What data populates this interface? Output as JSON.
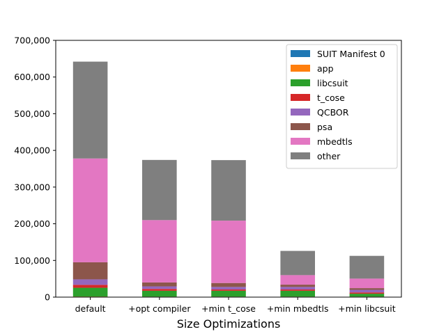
{
  "chart_data": {
    "type": "bar",
    "stacked": true,
    "xlabel": "Size Optimizations",
    "ylabel": "",
    "title": "",
    "categories": [
      "default",
      "+opt compiler",
      "+min t_cose",
      "+min mbedtls",
      "+min libcsuit"
    ],
    "ylim": [
      0,
      700000
    ],
    "yticks": [
      0,
      100000,
      200000,
      300000,
      400000,
      500000,
      600000,
      700000
    ],
    "ytick_labels": [
      "0",
      "100,000",
      "200,000",
      "300,000",
      "400,000",
      "500,000",
      "600,000",
      "700,000"
    ],
    "grid": false,
    "legend_position": "top-right",
    "series": [
      {
        "name": "SUIT Manifest 0",
        "color": "#1f77b4",
        "values": [
          500,
          500,
          500,
          500,
          500
        ]
      },
      {
        "name": "app",
        "color": "#ff7f0e",
        "values": [
          1000,
          800,
          800,
          800,
          800
        ]
      },
      {
        "name": "libcsuit",
        "color": "#2ca02c",
        "values": [
          24000,
          16000,
          16000,
          16000,
          8000
        ]
      },
      {
        "name": "t_cose",
        "color": "#d62728",
        "values": [
          8000,
          5000,
          3500,
          3500,
          3500
        ]
      },
      {
        "name": "QCBOR",
        "color": "#9467bd",
        "values": [
          15000,
          7000,
          7000,
          7000,
          7000
        ]
      },
      {
        "name": "psa",
        "color": "#8c564b",
        "values": [
          46500,
          10700,
          10700,
          6200,
          4700
        ]
      },
      {
        "name": "mbedtls",
        "color": "#e377c2",
        "values": [
          283000,
          170000,
          170000,
          26000,
          26000
        ]
      },
      {
        "name": "other",
        "color": "#7f7f7f",
        "values": [
          264000,
          164000,
          165000,
          66000,
          62000
        ]
      }
    ]
  }
}
